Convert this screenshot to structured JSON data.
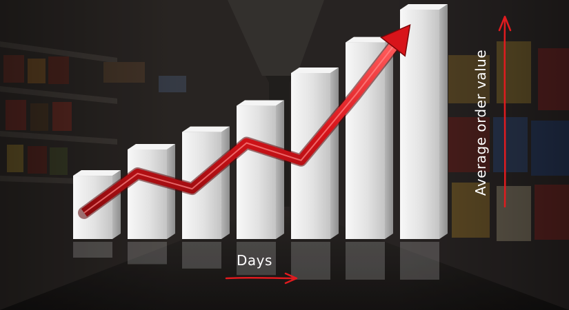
{
  "chart_data": {
    "type": "bar",
    "title": "",
    "xlabel": "Days",
    "ylabel": "Average order value",
    "ylim": [
      0,
      10
    ],
    "grid": false,
    "legend": "none",
    "categories": [
      "",
      "",
      "",
      "",
      "",
      "",
      ""
    ],
    "values": [
      2.9,
      4.1,
      4.9,
      6.1,
      7.6,
      9.0,
      10.5
    ],
    "trend_arrow": [
      1.2,
      3.0,
      2.3,
      4.4,
      3.6,
      6.6,
      9.8
    ],
    "colors": {
      "bar_front": "#e6e6e6",
      "bar_side": "#a9a9a9",
      "bar_top": "#f4f4f4",
      "arrow": "#d8141a",
      "axis_arrow": "#e01b1f",
      "label": "#ffffff"
    }
  }
}
